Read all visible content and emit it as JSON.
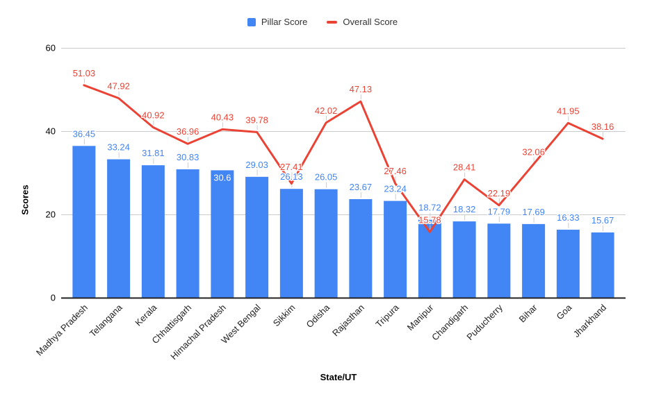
{
  "page": {
    "background": "#ffffff"
  },
  "legend": {
    "items": [
      {
        "label": "Pillar Score",
        "swatch": "square-icon",
        "color": "#4285F4"
      },
      {
        "label": "Overall Score",
        "swatch": "dash-icon",
        "color": "#EA4335"
      }
    ]
  },
  "chart_data": {
    "type": "bar+line",
    "title": "",
    "xlabel": "State/UT",
    "ylabel": "Scores",
    "categories": [
      "Madhya Pradesh",
      "Telangana",
      "Kerala",
      "Chhattisgarh",
      "Himachal Pradesh",
      "West Bengal",
      "Sikkim",
      "Odisha",
      "Rajasthan",
      "Tripura",
      "Manipur",
      "Chandigarh",
      "Puducherry",
      "Bihar",
      "Goa",
      "Jharkhand"
    ],
    "series": [
      {
        "name": "Pillar Score",
        "type": "bar",
        "color": "#4285F4",
        "values": [
          36.45,
          33.24,
          31.81,
          30.83,
          30.6,
          29.03,
          26.13,
          26.05,
          23.67,
          23.24,
          18.72,
          18.32,
          17.79,
          17.69,
          16.33,
          15.67
        ]
      },
      {
        "name": "Overall Score",
        "type": "line",
        "color": "#EA4335",
        "values": [
          51.03,
          47.92,
          40.92,
          36.96,
          40.43,
          39.78,
          27.41,
          42.02,
          47.13,
          27.46,
          15.78,
          28.41,
          22.19,
          32.06,
          41.95,
          38.16
        ]
      }
    ],
    "ylim": [
      0,
      60
    ],
    "yticks": [
      0,
      20,
      40,
      60
    ],
    "grid": true,
    "grid_color": "#cccccc",
    "axis_color": "#222222",
    "leader_color": "#cccccc",
    "annotations_shown": true,
    "legend_position": "top",
    "inside_label_category": "Himachal Pradesh",
    "x_label_rotation_deg": -45
  }
}
